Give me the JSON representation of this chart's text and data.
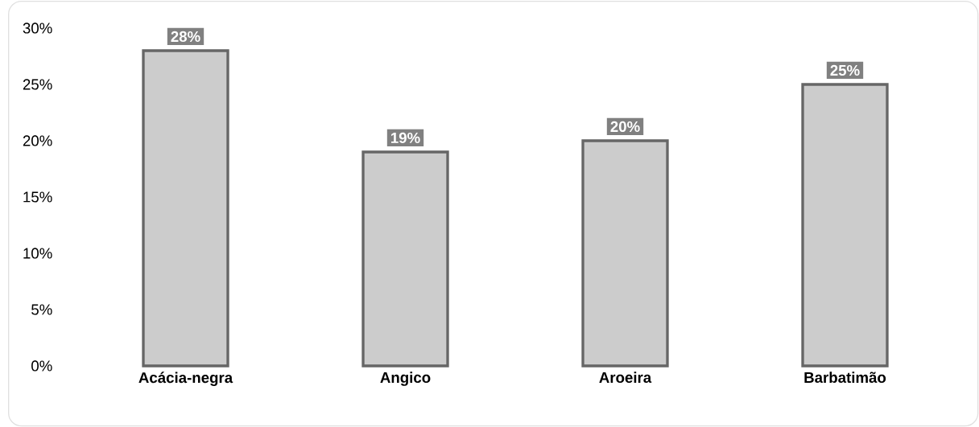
{
  "chart_data": {
    "type": "bar",
    "categories": [
      "Acácia-negra",
      "Angico",
      "Aroeira",
      "Barbatimão"
    ],
    "values": [
      28,
      19,
      20,
      25
    ],
    "value_labels": [
      "28%",
      "19%",
      "20%",
      "25%"
    ],
    "color": "#cccccc",
    "ylim": [
      0,
      30
    ],
    "yticks": [
      {
        "value": 0,
        "label": "0%"
      },
      {
        "value": 5,
        "label": "5%"
      },
      {
        "value": 10,
        "label": "10%"
      },
      {
        "value": 15,
        "label": "15%"
      },
      {
        "value": 20,
        "label": "20%"
      },
      {
        "value": 25,
        "label": "25%"
      },
      {
        "value": 30,
        "label": "30%"
      }
    ],
    "grid": false
  }
}
